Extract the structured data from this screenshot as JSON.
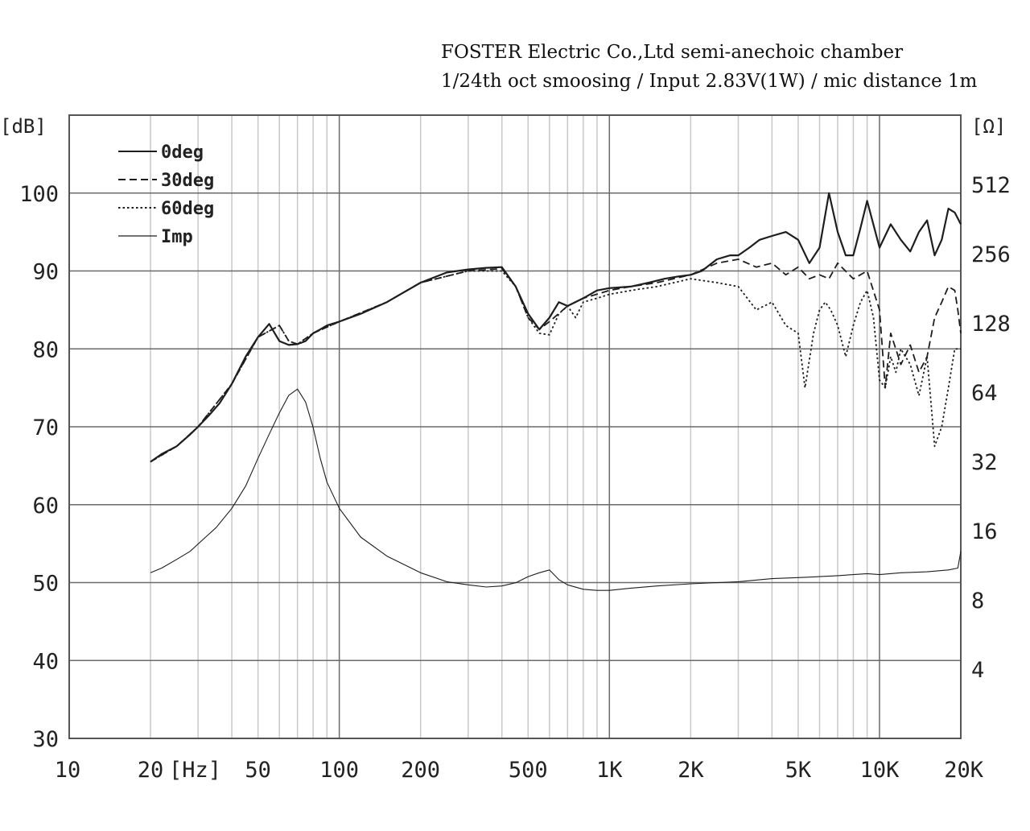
{
  "header": {
    "line1": "FOSTER Electric Co.,Ltd  semi-anechoic chamber",
    "line2": "1/24th oct smoosing / Input 2.83V(1W) / mic distance 1m"
  },
  "chart_data": {
    "type": "line",
    "title": "FOSTER Electric Co.,Ltd  semi-anechoic chamber",
    "subtitle": "1/24th oct smoosing / Input 2.83V(1W) / mic distance 1m",
    "xlabel": "[Hz]",
    "ylabel": "[dB]",
    "y2label": "[Ω]",
    "x_scale": "log",
    "xlim": [
      10,
      20000
    ],
    "ylim": [
      30,
      110
    ],
    "y2lim": [
      2,
      1024
    ],
    "y2_scale": "log2",
    "grid": true,
    "legend_position": "top-left",
    "x_ticks": [
      {
        "value": 10,
        "label": "10"
      },
      {
        "value": 20,
        "label": "20"
      },
      {
        "value": 50,
        "label": "50"
      },
      {
        "value": 100,
        "label": "100"
      },
      {
        "value": 200,
        "label": "200"
      },
      {
        "value": 500,
        "label": "500"
      },
      {
        "value": 1000,
        "label": "1K"
      },
      {
        "value": 2000,
        "label": "2K"
      },
      {
        "value": 5000,
        "label": "5K"
      },
      {
        "value": 10000,
        "label": "10K"
      },
      {
        "value": 20000,
        "label": "20K"
      }
    ],
    "y_ticks": [
      {
        "value": 30,
        "label": "30"
      },
      {
        "value": 40,
        "label": "40"
      },
      {
        "value": 50,
        "label": "50"
      },
      {
        "value": 60,
        "label": "60"
      },
      {
        "value": 70,
        "label": "70"
      },
      {
        "value": 80,
        "label": "80"
      },
      {
        "value": 90,
        "label": "90"
      },
      {
        "value": 100,
        "label": "100"
      }
    ],
    "y2_ticks": [
      {
        "value": 4,
        "label": "4"
      },
      {
        "value": 8,
        "label": "8"
      },
      {
        "value": 16,
        "label": "16"
      },
      {
        "value": 32,
        "label": "32"
      },
      {
        "value": 64,
        "label": "64"
      },
      {
        "value": 128,
        "label": "128"
      },
      {
        "value": 256,
        "label": "256"
      },
      {
        "value": 512,
        "label": "512"
      }
    ],
    "series": [
      {
        "name": "0deg",
        "style": "solid",
        "axis": "left",
        "x": [
          20,
          22,
          25,
          28,
          30,
          33,
          36,
          40,
          45,
          50,
          55,
          60,
          65,
          70,
          75,
          80,
          85,
          90,
          100,
          120,
          150,
          200,
          250,
          300,
          350,
          400,
          450,
          500,
          550,
          600,
          650,
          700,
          800,
          900,
          1000,
          1200,
          1400,
          1600,
          1800,
          2000,
          2200,
          2500,
          2800,
          3000,
          3300,
          3600,
          4000,
          4500,
          5000,
          5500,
          6000,
          6500,
          7000,
          7500,
          8000,
          8500,
          9000,
          10000,
          11000,
          12000,
          13000,
          14000,
          15000,
          16000,
          17000,
          18000,
          19000,
          20000
        ],
        "values": [
          65.5,
          66.5,
          67.5,
          69,
          70,
          71.5,
          73,
          75.5,
          79,
          81.5,
          83.2,
          81,
          80.5,
          80.6,
          81,
          82,
          82.5,
          83,
          83.5,
          84.5,
          86,
          88.5,
          89.8,
          90.2,
          90.4,
          90.5,
          88,
          84.5,
          82.5,
          84,
          86,
          85.5,
          86.5,
          87.5,
          87.8,
          88,
          88.5,
          89,
          89.3,
          89.5,
          90,
          91.5,
          92,
          92,
          93,
          94,
          94.5,
          95,
          94,
          91,
          93,
          100,
          95,
          92,
          92,
          95.5,
          99,
          93,
          96,
          94,
          92.5,
          95,
          96.5,
          92,
          94,
          98,
          97.5,
          96
        ]
      },
      {
        "name": "30deg",
        "style": "dashed",
        "axis": "left",
        "x": [
          20,
          25,
          30,
          40,
          50,
          60,
          65,
          70,
          80,
          100,
          150,
          200,
          300,
          400,
          450,
          500,
          550,
          600,
          700,
          800,
          1000,
          1200,
          1500,
          2000,
          2500,
          3000,
          3500,
          4000,
          4500,
          5000,
          5500,
          6000,
          6500,
          7000,
          8000,
          9000,
          10000,
          10500,
          11000,
          12000,
          13000,
          14000,
          15000,
          16000,
          17000,
          18000,
          19000,
          19500,
          20000
        ],
        "values": [
          65.5,
          67.5,
          70,
          75.5,
          81.5,
          83,
          81,
          80.6,
          82,
          83.5,
          86,
          88.5,
          90,
          90.3,
          88,
          84,
          82.5,
          83.5,
          85.5,
          86.5,
          87.5,
          88,
          88.5,
          89.5,
          91,
          91.5,
          90.5,
          91,
          89.5,
          90.5,
          89,
          89.5,
          89,
          91,
          89,
          90,
          85,
          75,
          82,
          78,
          80.5,
          77,
          79,
          84,
          86,
          88,
          87.5,
          85,
          82
        ]
      },
      {
        "name": "60deg",
        "style": "dotted",
        "axis": "left",
        "x": [
          20,
          25,
          30,
          40,
          50,
          60,
          65,
          70,
          80,
          100,
          150,
          200,
          300,
          400,
          450,
          500,
          550,
          600,
          650,
          700,
          750,
          800,
          900,
          1000,
          1200,
          1500,
          2000,
          2500,
          3000,
          3500,
          4000,
          4500,
          5000,
          5300,
          5700,
          6000,
          6300,
          6600,
          7000,
          7500,
          8000,
          8500,
          9000,
          9500,
          10000,
          10500,
          11000,
          11500,
          12000,
          13000,
          14000,
          15000,
          16000,
          17000,
          18000,
          19000,
          20000
        ],
        "values": [
          65.5,
          67.5,
          70,
          75.5,
          81.5,
          83,
          81,
          80.6,
          82,
          83.5,
          86,
          88.5,
          90,
          90,
          88,
          84,
          82,
          81.8,
          84.5,
          85.5,
          84,
          86,
          86.5,
          87,
          87.5,
          88,
          89,
          88.5,
          88,
          85,
          86,
          83,
          82,
          75,
          82,
          85,
          86,
          85,
          83,
          79,
          83,
          86,
          87.5,
          84,
          76,
          75,
          79,
          77,
          80,
          78,
          74,
          79,
          67.5,
          70,
          75,
          80,
          80
        ]
      },
      {
        "name": "Imp",
        "style": "thin",
        "axis": "right",
        "x": [
          20,
          22,
          25,
          28,
          30,
          35,
          40,
          45,
          50,
          55,
          60,
          65,
          70,
          75,
          80,
          85,
          90,
          100,
          120,
          150,
          200,
          250,
          300,
          350,
          400,
          450,
          500,
          550,
          600,
          650,
          700,
          800,
          900,
          1000,
          1200,
          1500,
          2000,
          3000,
          4000,
          5000,
          6000,
          7000,
          8000,
          9000,
          10000,
          12000,
          15000,
          18000,
          19500,
          20000
        ],
        "values": [
          10.5,
          11,
          12,
          13,
          14,
          16.5,
          20,
          25,
          33,
          42,
          52,
          62,
          66,
          58,
          45,
          33,
          26,
          20,
          15,
          12.4,
          10.5,
          9.6,
          9.3,
          9.1,
          9.2,
          9.5,
          10.1,
          10.5,
          10.8,
          9.8,
          9.3,
          8.9,
          8.8,
          8.8,
          9.0,
          9.2,
          9.4,
          9.6,
          9.9,
          10.0,
          10.1,
          10.2,
          10.3,
          10.4,
          10.3,
          10.5,
          10.6,
          10.8,
          11,
          13
        ]
      }
    ]
  },
  "colors": {
    "line": "#1e1e1e",
    "grid_major": "#6a6a6a",
    "grid_minor": "#c8c8c8"
  }
}
